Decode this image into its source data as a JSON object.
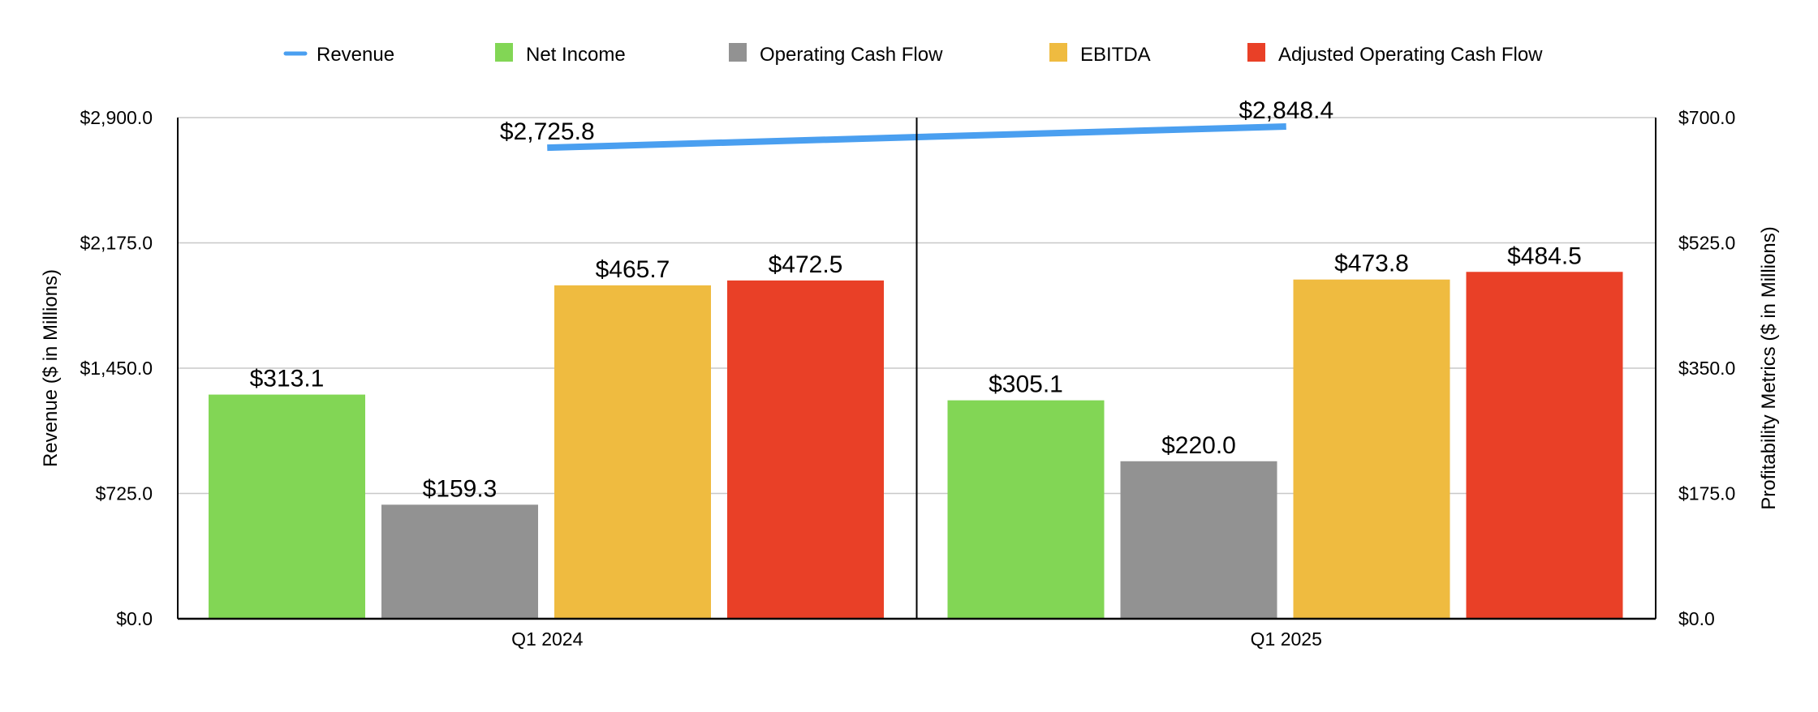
{
  "chart_data": {
    "type": "bar",
    "categories": [
      "Q1 2024",
      "Q1 2025"
    ],
    "left_axis": {
      "title": "Revenue ($ in Millions)",
      "range": [
        0,
        2900
      ],
      "ticks": [
        "$0.0",
        "$725.0",
        "$1,450.0",
        "$2,175.0",
        "$2,900.0"
      ]
    },
    "right_axis": {
      "title": "Profitability Metrics ($ in Millions)",
      "range": [
        0,
        700
      ],
      "ticks": [
        "$0.0",
        "$175.0",
        "$350.0",
        "$525.0",
        "$700.0"
      ]
    },
    "line_series": {
      "name": "Revenue",
      "axis": "left",
      "color": "#4a9ff0",
      "values": [
        2725.8,
        2848.4
      ],
      "labels": [
        "$2,725.8",
        "$2,848.4"
      ]
    },
    "bar_series": [
      {
        "name": "Net Income",
        "color": "#82d655",
        "values": [
          313.1,
          305.1
        ],
        "labels": [
          "$313.1",
          "$305.1"
        ]
      },
      {
        "name": "Operating Cash Flow",
        "color": "#929292",
        "values": [
          159.3,
          220.0
        ],
        "labels": [
          "$159.3",
          "$220.0"
        ]
      },
      {
        "name": "EBITDA",
        "color": "#efbb40",
        "values": [
          465.7,
          473.8
        ],
        "labels": [
          "$465.7",
          "$473.8"
        ]
      },
      {
        "name": "Adjusted Operating Cash Flow",
        "color": "#e94027",
        "values": [
          472.5,
          484.5
        ],
        "labels": [
          "$472.5",
          "$484.5"
        ]
      }
    ],
    "grid": true,
    "legend_position": "top"
  }
}
